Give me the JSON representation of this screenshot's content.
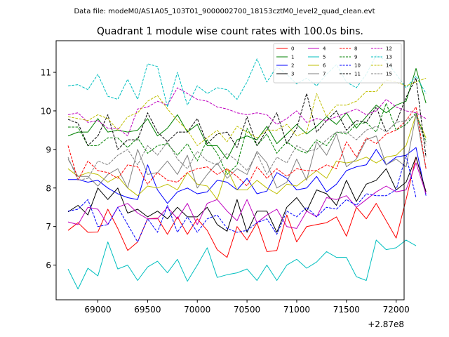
{
  "chart_data": {
    "type": "line",
    "suptitle": "Data file: modeM0/AS1A05_103T01_9000002700_18153cztM0_level2_quad_clean.evt",
    "title": "Quadrant 1 module wise count rates with 100.0s bins.",
    "xlabel": "",
    "ylabel": "",
    "x_offset_label": "+2.87e8",
    "xlim": [
      68580,
      72080
    ],
    "ylim": [
      5.1,
      11.82
    ],
    "xticks": [
      69000,
      69500,
      70000,
      70500,
      71000,
      71500,
      72000
    ],
    "yticks": [
      6,
      7,
      8,
      9,
      10,
      11
    ],
    "x_start": 68700,
    "x_step": 100,
    "legend_location": "upper-right",
    "series": [
      {
        "name": "0",
        "color": "#ff0000",
        "dash": "solid",
        "values": [
          6.9,
          7.1,
          6.85,
          6.86,
          7.45,
          6.95,
          6.38,
          6.6,
          7.2,
          7.22,
          6.8,
          7.25,
          6.8,
          7.2,
          6.9,
          6.4,
          6.2,
          7.0,
          6.65,
          7.1,
          6.35,
          6.38,
          7.3,
          6.6,
          7.0,
          7.05,
          7.1,
          7.25,
          6.75,
          7.5,
          7.2,
          7.6,
          7.15,
          6.7,
          7.7,
          8.8,
          7.9
        ]
      },
      {
        "name": "1",
        "color": "#008000",
        "dash": "solid",
        "values": [
          9.35,
          9.45,
          9.45,
          9.8,
          9.45,
          9.5,
          9.45,
          9.5,
          9.8,
          9.35,
          9.55,
          9.9,
          9.45,
          9.65,
          9.1,
          9.1,
          8.75,
          9.25,
          9.35,
          9.25,
          9.6,
          9.15,
          9.4,
          9.65,
          9.4,
          9.6,
          9.85,
          9.65,
          9.95,
          9.55,
          9.85,
          10.15,
          9.95,
          10.15,
          10.25,
          11.1,
          10.2
        ]
      },
      {
        "name": "2",
        "color": "#0000ff",
        "dash": "solid",
        "values": [
          8.22,
          8.22,
          8.15,
          8.2,
          8.0,
          7.85,
          7.75,
          7.7,
          8.6,
          7.95,
          7.6,
          7.9,
          8.0,
          7.85,
          7.9,
          8.2,
          8.15,
          7.95,
          8.25,
          7.85,
          7.92,
          8.4,
          8.25,
          7.95,
          8.0,
          8.3,
          7.9,
          8.1,
          8.45,
          8.55,
          8.6,
          9.0,
          8.6,
          8.8,
          8.85,
          9.05,
          7.8
        ]
      },
      {
        "name": "3",
        "color": "#000000",
        "dash": "solid",
        "values": [
          7.38,
          7.55,
          7.3,
          8.0,
          7.7,
          8.0,
          7.35,
          7.45,
          7.25,
          7.4,
          7.2,
          7.5,
          7.25,
          7.25,
          7.5,
          7.05,
          6.88,
          7.7,
          6.85,
          7.4,
          7.4,
          6.85,
          7.5,
          7.75,
          7.4,
          7.95,
          7.85,
          7.55,
          8.2,
          7.65,
          8.1,
          8.2,
          8.5,
          7.95,
          8.15,
          8.8,
          7.9
        ]
      },
      {
        "name": "4",
        "color": "#bf00bf",
        "dash": "solid",
        "values": [
          7.12,
          7.05,
          7.5,
          7.45,
          7.05,
          7.5,
          7.6,
          7.35,
          7.2,
          7.2,
          7.5,
          7.2,
          7.6,
          7.05,
          7.6,
          7.7,
          7.4,
          7.15,
          7.7,
          7.1,
          7.3,
          7.45,
          7.0,
          6.95,
          7.4,
          7.25,
          7.75,
          7.7,
          7.8,
          7.5,
          7.7,
          7.9,
          8.05,
          7.9,
          7.95,
          8.65,
          7.85
        ]
      },
      {
        "name": "5",
        "color": "#00bfbf",
        "dash": "solid",
        "values": [
          5.9,
          5.38,
          5.92,
          5.72,
          6.6,
          5.9,
          6.0,
          5.6,
          5.95,
          6.1,
          5.8,
          6.15,
          5.58,
          6.0,
          6.45,
          5.68,
          5.75,
          5.8,
          5.9,
          5.6,
          6.0,
          5.6,
          6.0,
          6.15,
          5.92,
          6.08,
          6.35,
          6.2,
          6.2,
          5.7,
          5.6,
          6.65,
          6.4,
          6.45,
          6.65,
          6.5
        ]
      },
      {
        "name": "6",
        "color": "#bfbf00",
        "dash": "solid",
        "values": [
          8.5,
          8.3,
          8.4,
          8.35,
          8.15,
          8.3,
          8.0,
          7.8,
          8.05,
          8.0,
          8.1,
          7.95,
          8.4,
          8.1,
          8.05,
          7.7,
          8.5,
          7.95,
          7.95,
          8.2,
          8.0,
          7.85,
          8.1,
          8.05,
          8.25,
          8.45,
          8.25,
          8.7,
          8.65,
          8.7,
          8.8,
          8.65,
          8.8,
          8.85,
          9.1,
          9.9,
          9.3
        ]
      },
      {
        "name": "7",
        "color": "#808080",
        "dash": "solid",
        "values": [
          8.75,
          8.3,
          8.3,
          8.05,
          8.35,
          8.5,
          8.0,
          9.0,
          8.35,
          8.4,
          8.7,
          8.35,
          8.85,
          8.0,
          8.35,
          8.65,
          8.25,
          8.5,
          8.35,
          8.95,
          8.65,
          8.0,
          8.15,
          8.75,
          8.2,
          9.2,
          8.85,
          9.4,
          8.55,
          8.75,
          9.25,
          9.35,
          8.6,
          8.75,
          8.55,
          9.9,
          8.5
        ]
      },
      {
        "name": "8",
        "color": "#ff0000",
        "dash": "dashed",
        "values": [
          9.1,
          8.2,
          8.7,
          8.45,
          8.4,
          8.25,
          8.6,
          8.55,
          8.1,
          8.4,
          8.2,
          8.15,
          8.4,
          8.5,
          8.55,
          8.35,
          8.5,
          8.3,
          8.05,
          8.55,
          8.25,
          8.5,
          8.3,
          8.5,
          8.45,
          8.45,
          8.6,
          8.5,
          9.2,
          8.8,
          9.3,
          9.15,
          9.4,
          9.5,
          9.75,
          10.1,
          8.5
        ]
      },
      {
        "name": "9",
        "color": "#008000",
        "dash": "dashed",
        "values": [
          9.58,
          9.58,
          9.1,
          9.1,
          9.3,
          9.3,
          9.05,
          9.3,
          8.9,
          9.1,
          9.15,
          8.85,
          9.15,
          8.7,
          9.25,
          8.9,
          8.35,
          8.6,
          9.55,
          9.1,
          9.4,
          8.9,
          9.2,
          9.0,
          8.9,
          9.25,
          9.1,
          9.45,
          9.4,
          9.65,
          9.7,
          9.45,
          10.2,
          9.5,
          9.65,
          9.95,
          9.2
        ]
      },
      {
        "name": "10",
        "color": "#0000ff",
        "dash": "dashed",
        "values": [
          7.4,
          7.45,
          7.7,
          7.0,
          7.05,
          7.5,
          7.05,
          6.6,
          7.2,
          6.85,
          7.55,
          6.85,
          7.25,
          6.85,
          7.2,
          7.3,
          6.95,
          6.85,
          6.9,
          7.1,
          7.2,
          6.8,
          7.4,
          7.25,
          7.5,
          7.25,
          7.5,
          7.45,
          7.7,
          7.55,
          7.85,
          7.8,
          7.8,
          7.95,
          8.85,
          7.75
        ]
      },
      {
        "name": "11",
        "color": "#000000",
        "dash": "dashed",
        "values": [
          9.78,
          9.68,
          9.1,
          9.35,
          9.9,
          9.0,
          9.25,
          9.25,
          9.95,
          9.45,
          9.2,
          9.45,
          9.45,
          9.8,
          9.15,
          9.4,
          9.45,
          9.05,
          9.85,
          9.1,
          9.5,
          9.95,
          9.15,
          9.55,
          10.45,
          9.45,
          9.75,
          10.0,
          9.5,
          9.75,
          9.7,
          10.1,
          9.45,
          9.7,
          10.35,
          10.85,
          8.8
        ]
      },
      {
        "name": "12",
        "color": "#bf00bf",
        "dash": "dashed",
        "values": [
          9.9,
          9.95,
          9.7,
          9.75,
          9.55,
          9.55,
          9.35,
          10.05,
          10.1,
          10.25,
          10.15,
          10.6,
          10.45,
          10.3,
          10.25,
          10.1,
          10.05,
          9.95,
          9.9,
          9.95,
          9.9,
          9.65,
          9.8,
          10.0,
          9.7,
          9.8,
          9.75,
          9.85,
          9.95,
          10.05,
          9.9,
          10.0,
          10.3,
          10.1,
          10.0,
          9.95,
          9.8
        ]
      },
      {
        "name": "13",
        "color": "#00bfbf",
        "dash": "dashed",
        "values": [
          10.65,
          10.68,
          10.55,
          10.95,
          10.38,
          10.3,
          10.82,
          10.3,
          11.22,
          11.15,
          10.1,
          11.0,
          10.15,
          10.65,
          10.45,
          10.6,
          10.55,
          10.3,
          10.75,
          11.35,
          10.75,
          11.15,
          10.95,
          10.7,
          10.85,
          10.65,
          10.95,
          11.2,
          10.75,
          10.6,
          10.95,
          11.45,
          11.3,
          10.95,
          10.6,
          10.9,
          10.45
        ]
      },
      {
        "name": "14",
        "color": "#bfbf00",
        "dash": "dashed",
        "values": [
          9.85,
          9.8,
          9.75,
          9.9,
          9.8,
          9.5,
          9.85,
          9.95,
          10.25,
          10.4,
          10.05,
          9.75,
          9.5,
          9.1,
          9.3,
          9.5,
          9.2,
          9.6,
          9.45,
          9.3,
          9.5,
          9.5,
          9.65,
          9.35,
          9.45,
          10.45,
          9.85,
          10.15,
          10.15,
          10.25,
          10.5,
          10.5,
          10.8,
          10.75,
          10.65,
          10.75,
          10.85
        ]
      },
      {
        "name": "15",
        "color": "#808080",
        "dash": "dashed",
        "values": [
          8.8,
          8.2,
          8.25,
          8.7,
          8.6,
          8.85,
          9.0,
          8.6,
          9.1,
          8.85,
          9.2,
          8.75,
          8.5,
          8.95,
          8.7,
          8.6,
          8.9,
          8.7,
          8.45,
          8.9,
          8.35,
          8.8,
          8.65,
          9.1,
          8.95,
          9.0,
          9.25,
          9.45,
          9.45,
          9.25,
          9.5,
          9.6,
          9.45,
          9.7,
          9.75,
          9.9,
          9.1
        ]
      }
    ]
  }
}
